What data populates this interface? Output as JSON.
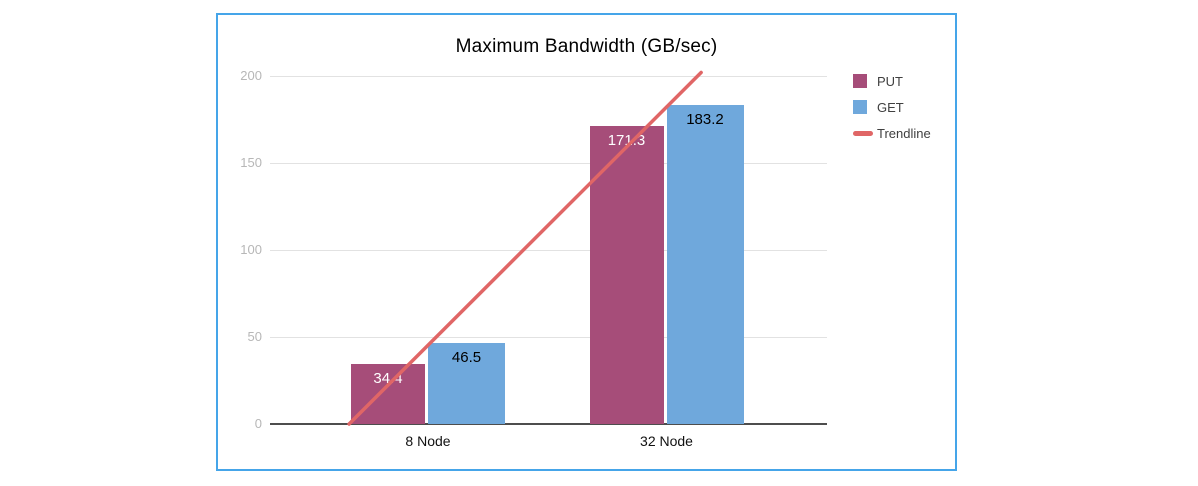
{
  "chart_data": {
    "type": "bar",
    "title": "Maximum Bandwidth (GB/sec)",
    "categories": [
      "8 Node",
      "32 Node"
    ],
    "series": [
      {
        "name": "PUT",
        "color": "#a64d79",
        "label_color": "#ffffff",
        "values": [
          34.4,
          171.3
        ]
      },
      {
        "name": "GET",
        "color": "#6fa8dc",
        "label_color": "#000000",
        "values": [
          46.5,
          183.2
        ]
      }
    ],
    "trendline": {
      "name": "Trendline",
      "color": "#e06666",
      "x1_frac": 0.142,
      "v1": 0,
      "x2_frac": 0.774,
      "v2": 202
    },
    "ylim": [
      0,
      200
    ],
    "yticks": [
      0,
      50,
      100,
      150,
      200
    ],
    "grid": true,
    "legend_position": "right",
    "legend": [
      "PUT",
      "GET",
      "Trendline"
    ],
    "colors": {
      "card_border": "#45a5e9",
      "gridline": "#e2e2e2",
      "axis_line": "#4d4d4d",
      "ytick_text": "#b7b7b7",
      "xtick_text": "#111111",
      "legend_text": "#404040"
    }
  }
}
